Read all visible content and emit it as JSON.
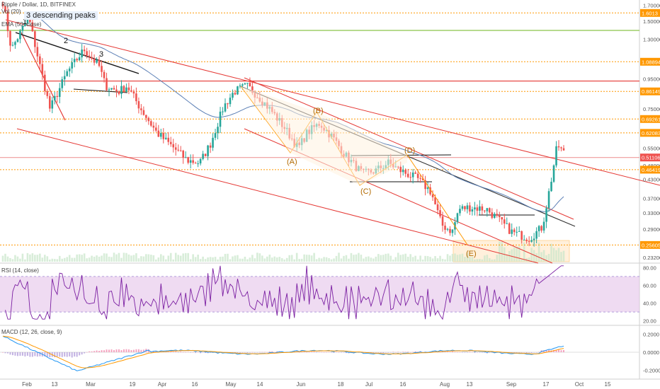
{
  "chart_data": {
    "type": "candlestick",
    "header": {
      "title": "Ripple / Dollar, 1D, BITFINEX",
      "volume_label": "Vol (20)",
      "ema_label": "EMA (50, close)"
    },
    "annotation": "3 descending peaks",
    "price_axis": {
      "scale": "log",
      "ticks": [
        1.7,
        1.5,
        1.3,
        0.95,
        0.75,
        0.55,
        0.48,
        0.43,
        0.37,
        0.33,
        0.29,
        0.232
      ]
    },
    "price_labels": [
      {
        "text": "1.6013",
        "value": 1.6013,
        "color": "#ff9800"
      },
      {
        "text": "1.08894",
        "value": 1.08894,
        "color": "#ff9800"
      },
      {
        "text": "0.86149",
        "value": 0.86149,
        "color": "#ff9800"
      },
      {
        "text": "0.69261",
        "value": 0.69261,
        "color": "#ff9800"
      },
      {
        "text": "0.62083",
        "value": 0.62083,
        "color": "#ff9800"
      },
      {
        "text": "0.51106",
        "value": 0.51106,
        "color": "#ef5350"
      },
      {
        "text": "0.46419",
        "value": 0.46419,
        "color": "#ff9800"
      },
      {
        "text": "0.25605",
        "value": 0.25605,
        "color": "#ff9800"
      }
    ],
    "horizontal_levels": [
      {
        "value": 1.78,
        "color": "#4caf50",
        "style": "solid"
      },
      {
        "value": 1.6013,
        "color": "#ff9800",
        "style": "dotted"
      },
      {
        "value": 1.395,
        "color": "#8bc34a",
        "style": "solid"
      },
      {
        "value": 1.08894,
        "color": "#ff9800",
        "style": "dotted"
      },
      {
        "value": 0.935,
        "color": "#e53935",
        "style": "solid"
      },
      {
        "value": 0.86149,
        "color": "#ff9800",
        "style": "dotted"
      },
      {
        "value": 0.69261,
        "color": "#ff9800",
        "style": "dotted"
      },
      {
        "value": 0.62083,
        "color": "#ff9800",
        "style": "dotted"
      },
      {
        "value": 0.51106,
        "color": "#ef9a9a",
        "style": "solid"
      },
      {
        "value": 0.46419,
        "color": "#ff9800",
        "style": "dotted"
      },
      {
        "value": 0.25605,
        "color": "#ff9800",
        "style": "dotted"
      }
    ],
    "peak_labels": [
      "1",
      "2",
      "3"
    ],
    "wave_labels": [
      "(A)",
      "(B)",
      "(C)",
      "(D)",
      "(E)"
    ],
    "x_axis": {
      "ticks": [
        "Feb",
        "13",
        "Mar",
        "19",
        "Apr",
        "16",
        "May",
        "14",
        "Jun",
        "18",
        "Jul",
        "16",
        "Aug",
        "13",
        "Sep",
        "17",
        "Oct",
        "15"
      ]
    },
    "rsi": {
      "label": "RSI (14, close)",
      "ticks": [
        80.0,
        60.0,
        40.0,
        20.0
      ],
      "band": [
        30,
        70
      ]
    },
    "macd": {
      "label": "MACD (12, 26, close, 9)",
      "ticks": [
        0.2,
        0.0,
        -0.2
      ],
      "tick_labels": [
        "0.2000",
        "0.0000",
        "-0.2000"
      ]
    },
    "colors": {
      "up": "#26a69a",
      "down": "#ef5350",
      "ema": "#5b7fb5",
      "wave_line": "#ff9800",
      "rsi_line": "#7b1fa2",
      "rsi_band": "#e1bee7"
    }
  }
}
